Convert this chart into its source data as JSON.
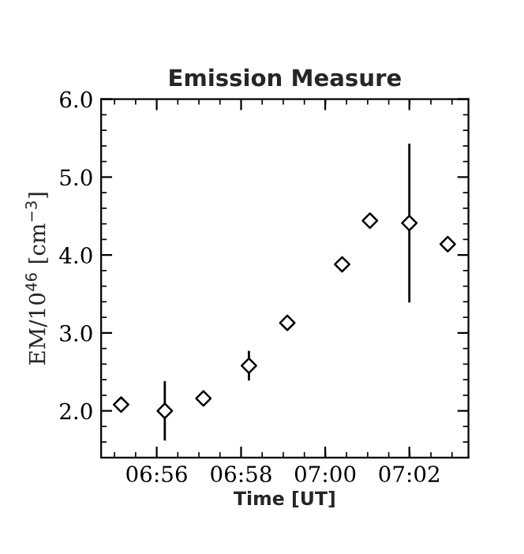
{
  "chart_data": {
    "type": "scatter",
    "title": "Emission Measure",
    "xlabel": "Time [UT]",
    "ylabel": "EM/10$^{46}$ [cm$^{−3}$]",
    "x": [
      6.9192,
      6.9365,
      6.9518,
      6.9698,
      6.985,
      7.0067,
      7.0177,
      7.0333,
      7.0485
    ],
    "series": [
      {
        "color": "#000000",
        "values": [
          2.08,
          2.0,
          2.16,
          2.58,
          3.13,
          3.88,
          4.44,
          4.41,
          4.14
        ],
        "errors": [
          null,
          0.38,
          null,
          0.19,
          null,
          0.09,
          null,
          1.02,
          null
        ]
      }
    ],
    "marker": "diamond",
    "xlim": [
      6.9113,
      7.0567
    ],
    "xticks": [
      {
        "value": 6.9333,
        "label": "06:56"
      },
      {
        "value": 6.9667,
        "label": "06:58"
      },
      {
        "value": 7.0,
        "label": "07:00"
      },
      {
        "value": 7.0333,
        "label": "07:02"
      }
    ],
    "ylim": [
      1.4,
      6.0
    ],
    "yticks": [
      {
        "value": 2.0,
        "label": "2.0"
      },
      {
        "value": 3.0,
        "label": "3.0"
      },
      {
        "value": 4.0,
        "label": "4.0"
      },
      {
        "value": 5.0,
        "label": "5.0"
      },
      {
        "value": 6.0,
        "label": "6.0"
      }
    ],
    "grid": false,
    "legend": false
  }
}
